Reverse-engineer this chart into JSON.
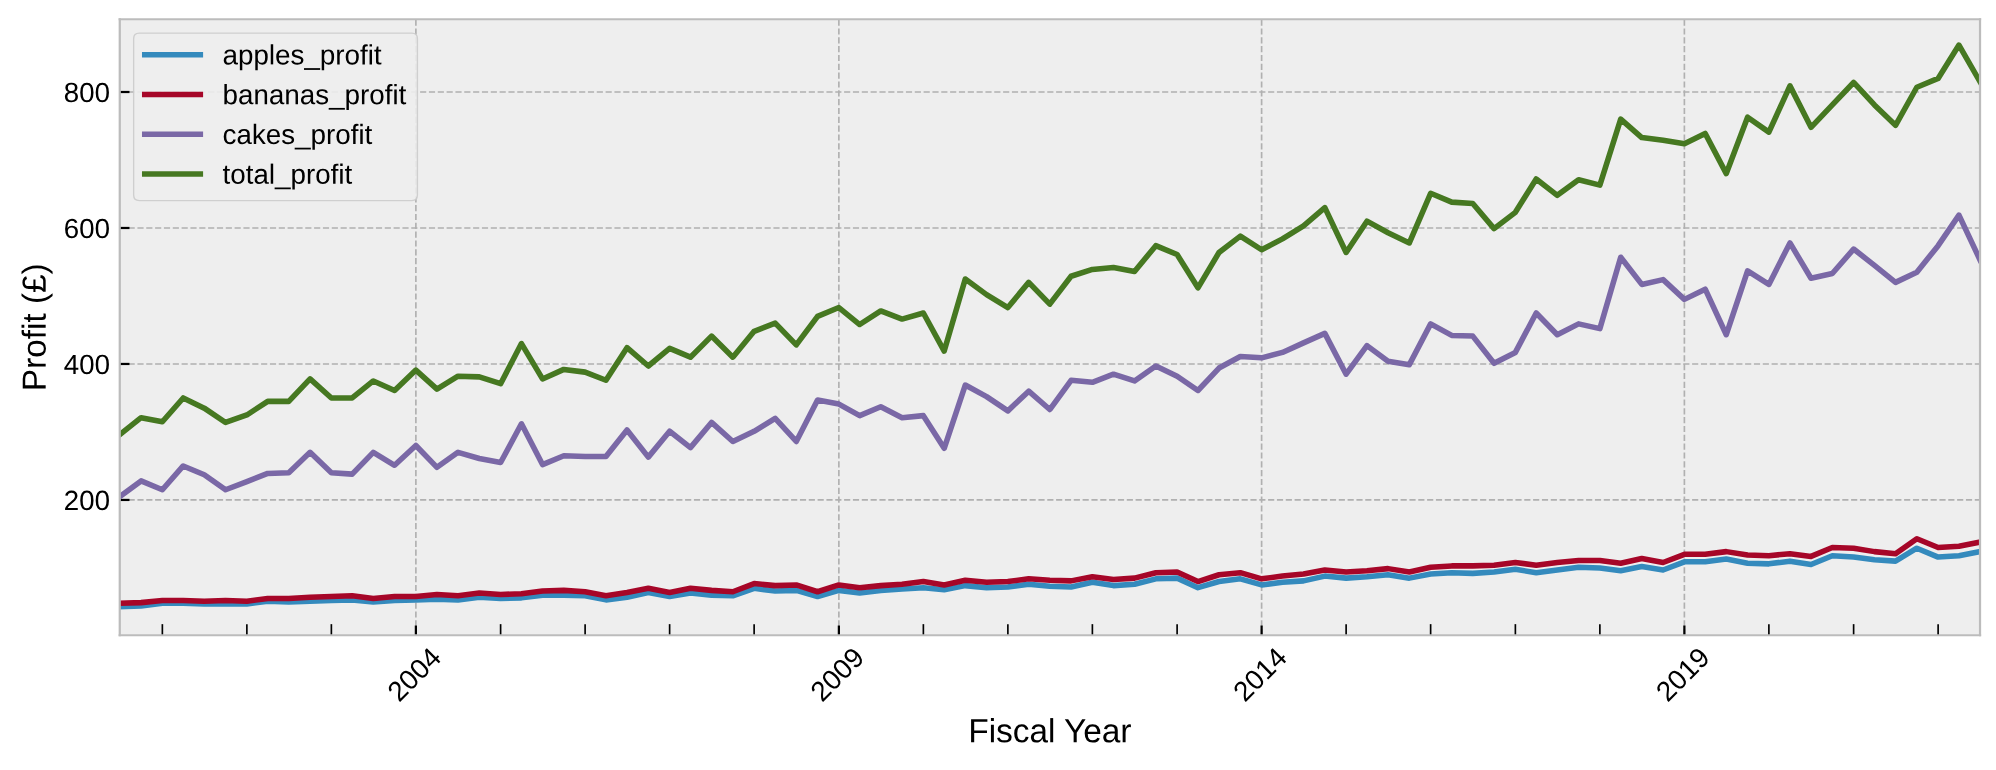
{
  "chart_data": {
    "type": "line",
    "xlabel": "Fiscal Year",
    "ylabel": "Profit (£)",
    "x": [
      "2000-07",
      "2000-10",
      "2001-01",
      "2001-04",
      "2001-07",
      "2001-10",
      "2002-01",
      "2002-04",
      "2002-07",
      "2002-10",
      "2003-01",
      "2003-04",
      "2003-07",
      "2003-10",
      "2004-01",
      "2004-04",
      "2004-07",
      "2004-10",
      "2005-01",
      "2005-04",
      "2005-07",
      "2005-10",
      "2006-01",
      "2006-04",
      "2006-07",
      "2006-10",
      "2007-01",
      "2007-04",
      "2007-07",
      "2007-10",
      "2008-01",
      "2008-04",
      "2008-07",
      "2008-10",
      "2009-01",
      "2009-04",
      "2009-07",
      "2009-10",
      "2010-01",
      "2010-04",
      "2010-07",
      "2010-10",
      "2011-01",
      "2011-04",
      "2011-07",
      "2011-10",
      "2012-01",
      "2012-04",
      "2012-07",
      "2012-10",
      "2013-01",
      "2013-04",
      "2013-07",
      "2013-10",
      "2014-01",
      "2014-04",
      "2014-07",
      "2014-10",
      "2015-01",
      "2015-04",
      "2015-07",
      "2015-10",
      "2016-01",
      "2016-04",
      "2016-07",
      "2016-10",
      "2017-01",
      "2017-04",
      "2017-07",
      "2017-10",
      "2018-01",
      "2018-04",
      "2018-07",
      "2018-10",
      "2019-01",
      "2019-04",
      "2019-07",
      "2019-10",
      "2020-01",
      "2020-04",
      "2020-07",
      "2020-10",
      "2021-01",
      "2021-04",
      "2021-07",
      "2021-10",
      "2022-01",
      "2022-04",
      "2022-07"
    ],
    "series": [
      {
        "name": "apples_profit",
        "color": "#348abd",
        "values": [
          43,
          44,
          48,
          48,
          47,
          47,
          47,
          51,
          50,
          51,
          52,
          53,
          50,
          52,
          53,
          54,
          53,
          57,
          55,
          56,
          60,
          60,
          59,
          53,
          57,
          64,
          58,
          63,
          60,
          59,
          70,
          66,
          67,
          58,
          67,
          63,
          67,
          69,
          71,
          68,
          74,
          71,
          72,
          76,
          73,
          72,
          79,
          74,
          76,
          84,
          85,
          71,
          80,
          84,
          75,
          79,
          81,
          88,
          85,
          87,
          90,
          85,
          91,
          93,
          92,
          94,
          98,
          93,
          97,
          101,
          100,
          96,
          102,
          97,
          109,
          109,
          113,
          107,
          106,
          110,
          105,
          118,
          116,
          112,
          110,
          129,
          116,
          118,
          124
        ]
      },
      {
        "name": "bananas_profit",
        "color": "#a60628",
        "values": [
          48,
          49,
          52,
          52,
          51,
          52,
          51,
          55,
          55,
          57,
          58,
          59,
          55,
          58,
          58,
          61,
          59,
          63,
          61,
          62,
          66,
          67,
          65,
          59,
          64,
          70,
          64,
          70,
          67,
          65,
          77,
          74,
          75,
          65,
          75,
          71,
          74,
          76,
          80,
          75,
          82,
          79,
          80,
          84,
          82,
          81,
          87,
          83,
          85,
          93,
          94,
          80,
          90,
          93,
          84,
          88,
          91,
          97,
          94,
          96,
          99,
          94,
          101,
          103,
          103,
          104,
          108,
          104,
          108,
          111,
          111,
          107,
          114,
          108,
          120,
          120,
          124,
          119,
          118,
          121,
          117,
          130,
          129,
          124,
          121,
          143,
          130,
          132,
          138
        ]
      },
      {
        "name": "cakes_profit",
        "color": "#7a68a6",
        "values": [
          205,
          228,
          215,
          250,
          237,
          215,
          227,
          239,
          240,
          270,
          240,
          238,
          270,
          251,
          280,
          248,
          270,
          261,
          255,
          312,
          252,
          265,
          264,
          264,
          303,
          263,
          301,
          277,
          314,
          286,
          301,
          320,
          286,
          347,
          341,
          324,
          337,
          321,
          324,
          276,
          369,
          352,
          331,
          360,
          333,
          376,
          373,
          385,
          375,
          397,
          382,
          361,
          394,
          411,
          409,
          417,
          431,
          445,
          385,
          427,
          404,
          399,
          459,
          442,
          441,
          401,
          417,
          475,
          443,
          459,
          452,
          557,
          517,
          524,
          495,
          510,
          443,
          537,
          517,
          578,
          526,
          533,
          569,
          545,
          520,
          535,
          574,
          619,
          553
        ]
      },
      {
        "name": "total_profit",
        "color": "#467821",
        "values": [
          296,
          321,
          315,
          350,
          335,
          314,
          325,
          345,
          345,
          378,
          350,
          350,
          375,
          361,
          391,
          363,
          382,
          381,
          371,
          430,
          378,
          392,
          388,
          376,
          424,
          397,
          423,
          410,
          441,
          410,
          448,
          460,
          428,
          470,
          483,
          458,
          478,
          466,
          475,
          419,
          525,
          502,
          483,
          520,
          488,
          529,
          539,
          542,
          536,
          574,
          561,
          512,
          564,
          588,
          568,
          584,
          603,
          630,
          564,
          610,
          593,
          578,
          651,
          638,
          636,
          599,
          623,
          672,
          648,
          671,
          663,
          760,
          733,
          729,
          724,
          739,
          680,
          763,
          741,
          809,
          748,
          781,
          814,
          781,
          751,
          807,
          820,
          869,
          815
        ]
      }
    ],
    "xlim": [
      "2000-07",
      "2022-07"
    ],
    "xticks": [
      {
        "value": "2004",
        "label": "2004"
      },
      {
        "value": "2009",
        "label": "2009"
      },
      {
        "value": "2014",
        "label": "2014"
      },
      {
        "value": "2019",
        "label": "2019"
      }
    ],
    "ylim": [
      1,
      907
    ],
    "yticks": [
      200,
      400,
      600,
      800
    ],
    "grid": true,
    "legend": "top left",
    "marker": "none",
    "line_style": "solid"
  }
}
